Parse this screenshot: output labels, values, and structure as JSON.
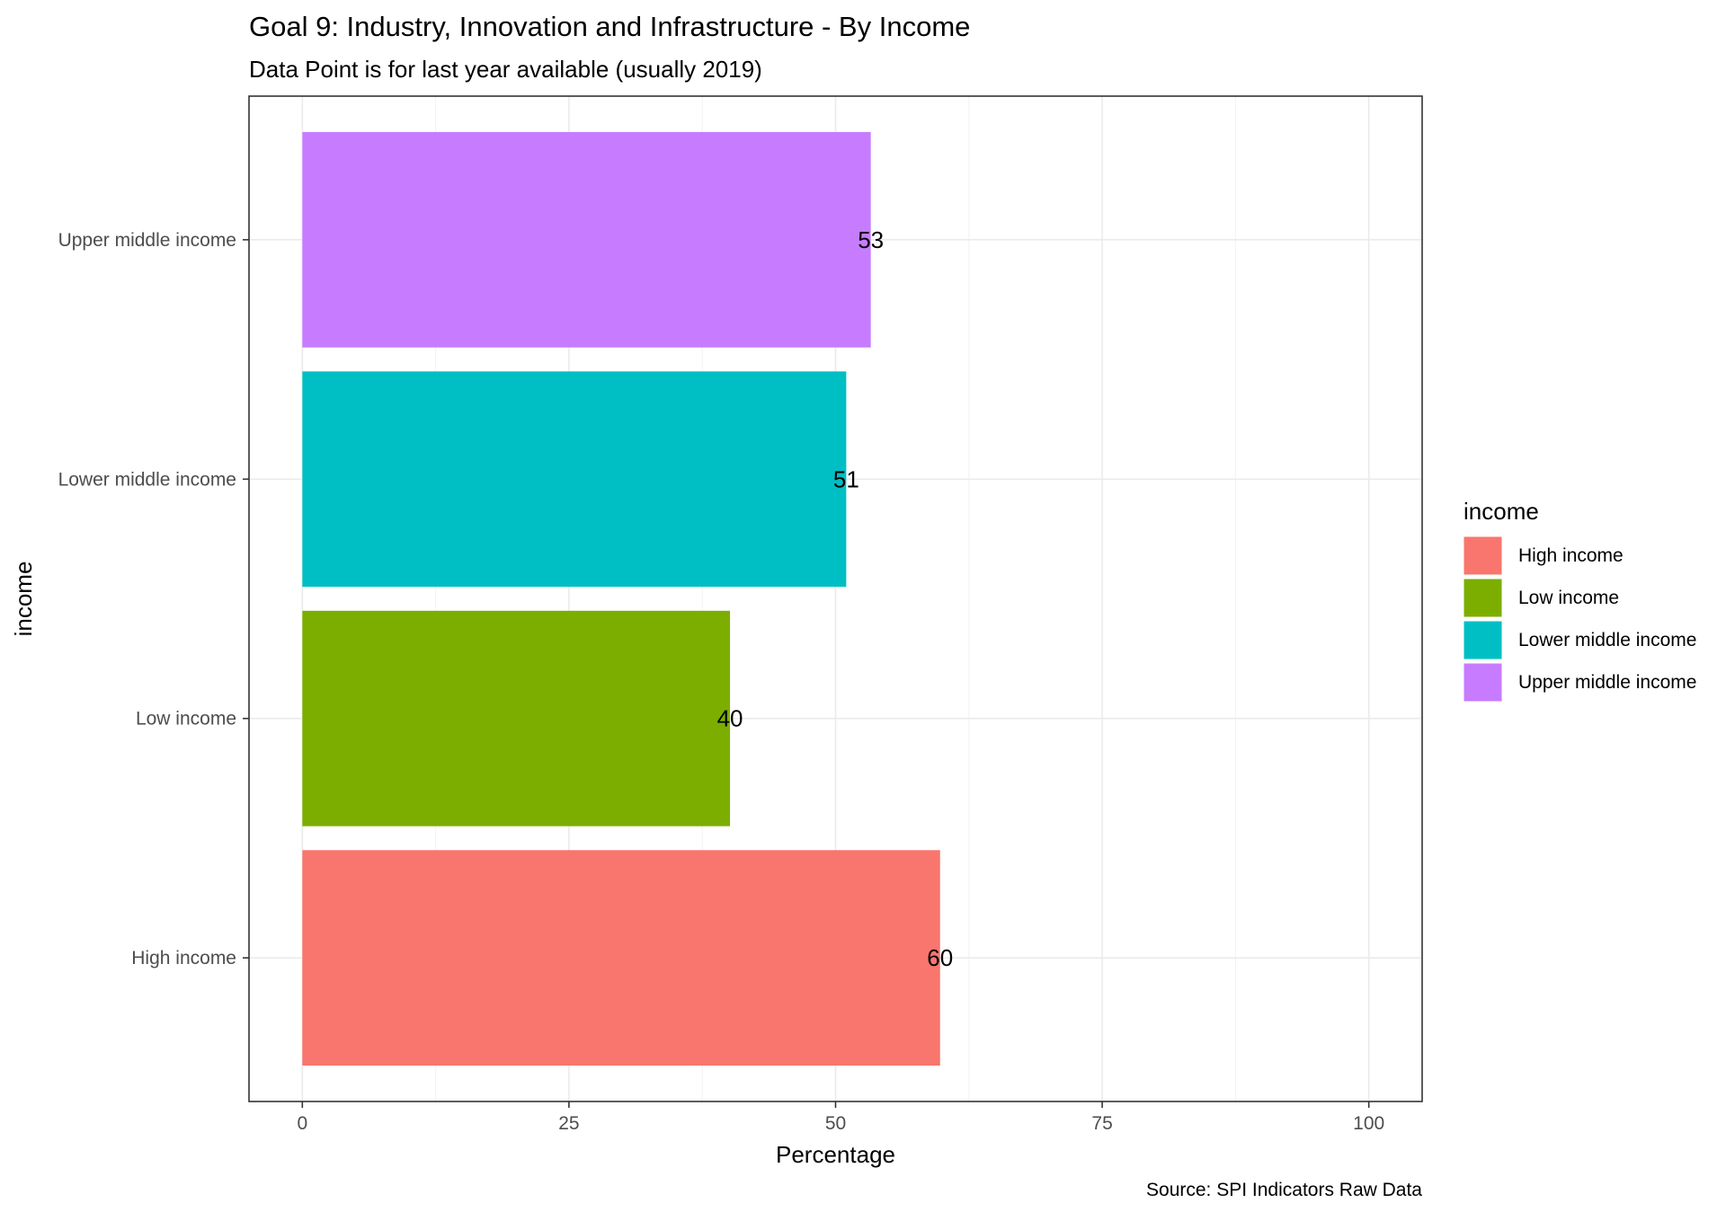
{
  "chart_data": {
    "type": "bar",
    "orientation": "horizontal",
    "title": "Goal 9: Industry, Innovation and Infrastructure - By Income",
    "subtitle": "Data Point is for last year available (usually 2019)",
    "xlabel": "Percentage",
    "ylabel": "income",
    "caption": "Source: SPI Indicators Raw Data",
    "categories": [
      "High income",
      "Low income",
      "Lower middle income",
      "Upper middle income"
    ],
    "values": [
      59.8,
      40.1,
      51.0,
      53.3
    ],
    "data_labels": [
      "60",
      "40",
      "51",
      "53"
    ],
    "colors": [
      "#F8766D",
      "#7CAE00",
      "#00BFC4",
      "#C77CFF"
    ],
    "xlim": [
      0,
      100
    ],
    "x_ticks": [
      0,
      25,
      50,
      75,
      100
    ],
    "x_tick_labels": [
      "0",
      "25",
      "50",
      "75",
      "100"
    ],
    "grid": true,
    "legend": {
      "title": "income",
      "position": "right",
      "entries": [
        "High income",
        "Low income",
        "Lower middle income",
        "Upper middle income"
      ]
    }
  }
}
